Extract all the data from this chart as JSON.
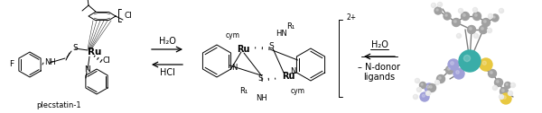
{
  "background_color": "#ffffff",
  "figsize": [
    6.0,
    1.26
  ],
  "dpi": 100,
  "plecstatin_label": "plecstatin-1",
  "arrow1_top": "H₂O",
  "arrow1_bottom": "HCl",
  "arrow2_top": "H₂O",
  "arrow2_bottom1": "– N-donor",
  "arrow2_bottom2": "ligands",
  "bracket_charge": "2+",
  "cym": "cym",
  "R1": "R₁",
  "HN": "HN",
  "NH": "NH",
  "S": "S",
  "N": "N",
  "Ru": "Ru",
  "Cl": "Cl",
  "F": "F"
}
